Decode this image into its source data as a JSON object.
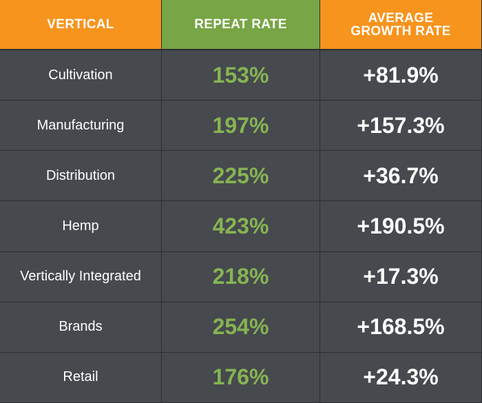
{
  "table": {
    "header": [
      "VERTICAL",
      "REPEAT RATE",
      "AVERAGE GROWTH RATE"
    ],
    "rows": [
      [
        "Cultivation",
        "153%",
        "+81.9%"
      ],
      [
        "Manufacturing",
        "197%",
        "+157.3%"
      ],
      [
        "Distribution",
        "225%",
        "+36.7%"
      ],
      [
        "Hemp",
        "423%",
        "+190.5%"
      ],
      [
        "Vertically Integrated",
        "218%",
        "+17.3%"
      ],
      [
        "Brands",
        "254%",
        "+168.5%"
      ],
      [
        "Retail",
        "176%",
        "+24.3%"
      ]
    ]
  }
}
